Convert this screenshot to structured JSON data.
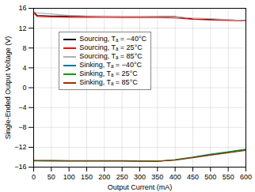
{
  "chart_data": {
    "type": "line",
    "title": "",
    "xlabel": "Output Current (mA)",
    "ylabel": "Single-Ended Output Voltage (V)",
    "xlim": [
      0,
      600
    ],
    "ylim": [
      -16,
      16
    ],
    "xticks": [
      0,
      50,
      100,
      150,
      200,
      250,
      300,
      350,
      400,
      450,
      500,
      550,
      600
    ],
    "yticks": [
      -16,
      -12,
      -8,
      -4,
      0,
      4,
      8,
      12,
      16
    ],
    "grid": true,
    "legend": "upper left",
    "series": [
      {
        "name": "Sourcing, Tₐ = −40°C",
        "color": "#000000",
        "x": [
          0,
          10,
          50,
          100,
          150,
          200,
          250,
          300,
          350,
          400,
          450,
          500,
          550,
          600
        ],
        "values": [
          15.3,
          14.55,
          14.45,
          14.42,
          14.4,
          14.4,
          14.38,
          14.37,
          14.36,
          14.3,
          13.85,
          13.75,
          13.65,
          13.55
        ]
      },
      {
        "name": "Sourcing, Tₐ = 25°C",
        "color": "#ff0000",
        "x": [
          0,
          10,
          50,
          100,
          150,
          200,
          250,
          300,
          350,
          400,
          450,
          500,
          550,
          600
        ],
        "values": [
          15.1,
          14.35,
          14.25,
          14.2,
          14.18,
          14.17,
          14.15,
          14.14,
          14.13,
          14.05,
          13.78,
          13.65,
          13.55,
          13.45
        ]
      },
      {
        "name": "Sourcing, Tₐ = 85°C",
        "color": "#b0b0b0",
        "x": [
          0,
          10,
          50,
          100,
          150,
          200,
          250,
          300,
          350,
          400,
          450,
          500,
          550,
          600
        ],
        "values": [
          15.25,
          15.05,
          14.85,
          14.55,
          14.45,
          14.42,
          14.4,
          14.38,
          14.35,
          14.25,
          14.05,
          13.9,
          13.72,
          13.52
        ]
      },
      {
        "name": "Sinking, Tₐ = −40°C",
        "color": "#007799",
        "x": [
          0,
          50,
          100,
          150,
          200,
          250,
          300,
          320,
          350,
          400,
          450,
          500,
          550,
          600
        ],
        "values": [
          -14.75,
          -14.78,
          -14.8,
          -14.8,
          -14.8,
          -14.8,
          -14.82,
          -14.83,
          -14.85,
          -14.5,
          -14.0,
          -13.4,
          -12.9,
          -12.4
        ]
      },
      {
        "name": "Sinking, Tₐ = 25°C",
        "color": "#009900",
        "x": [
          0,
          50,
          100,
          150,
          200,
          250,
          300,
          320,
          350,
          400,
          450,
          500,
          550,
          600
        ],
        "values": [
          -14.7,
          -14.72,
          -14.75,
          -14.75,
          -14.75,
          -14.76,
          -14.78,
          -14.8,
          -14.82,
          -14.55,
          -14.05,
          -13.5,
          -13.0,
          -12.5
        ]
      },
      {
        "name": "Sinking, Tₐ = 85°C",
        "color": "#993300",
        "x": [
          0,
          50,
          100,
          150,
          200,
          250,
          300,
          320,
          350,
          400,
          450,
          500,
          550,
          600
        ],
        "values": [
          -14.65,
          -14.68,
          -14.7,
          -14.7,
          -14.7,
          -14.72,
          -14.74,
          -14.76,
          -14.78,
          -14.6,
          -14.1,
          -13.6,
          -13.1,
          -12.62
        ]
      }
    ]
  }
}
